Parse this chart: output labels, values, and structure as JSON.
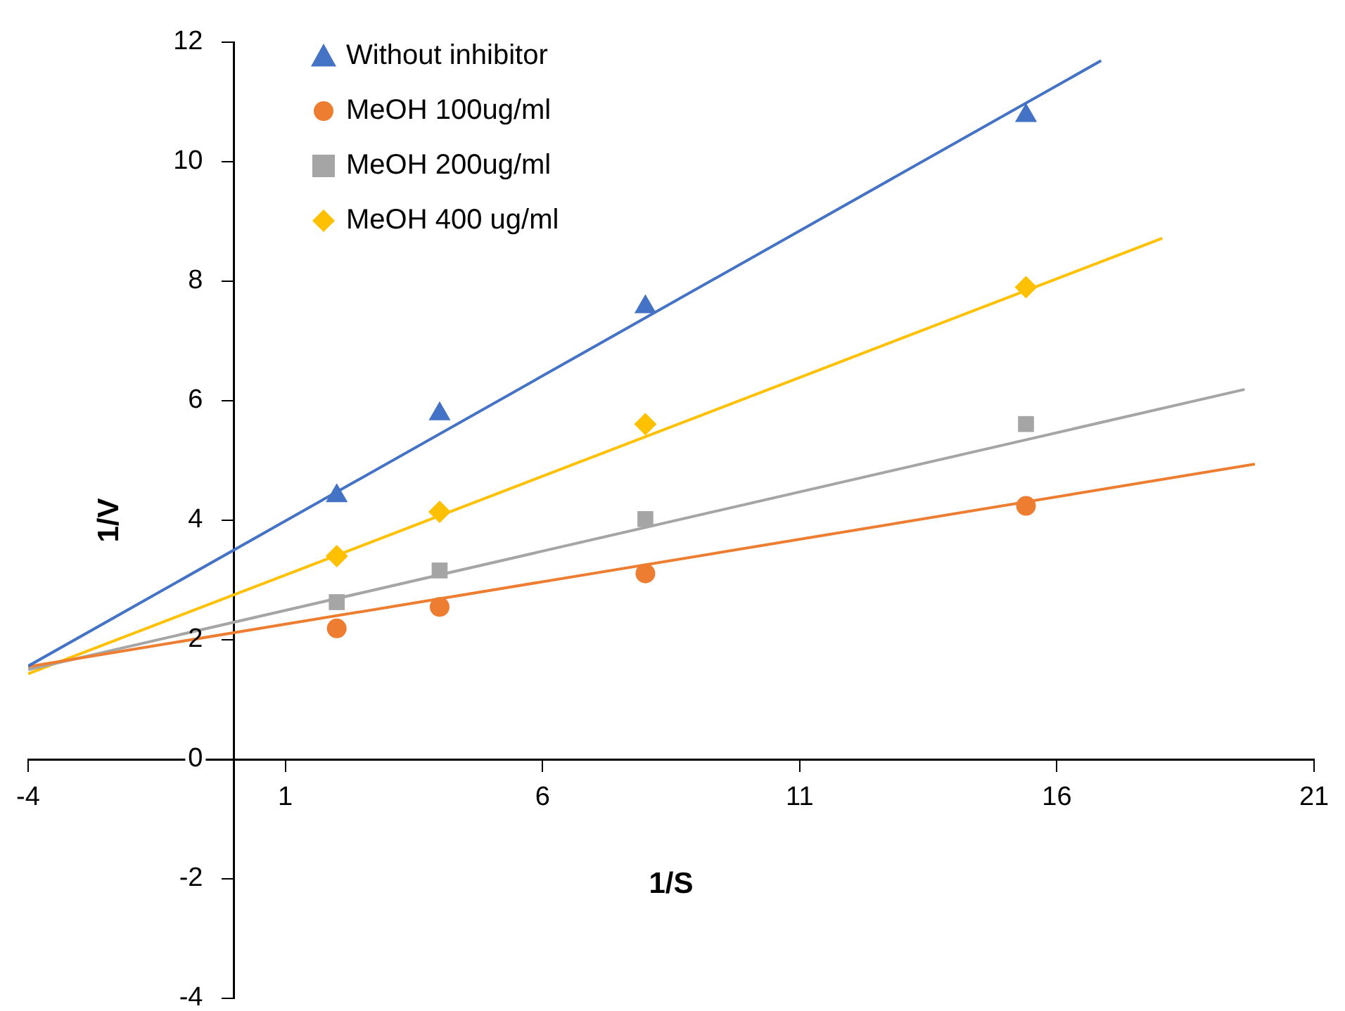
{
  "chart_data": {
    "type": "scatter",
    "xlabel": "1/S",
    "ylabel": "1/V",
    "xlim": [
      -4,
      21
    ],
    "xticks": [
      -4,
      1,
      6,
      11,
      16,
      21
    ],
    "ylim": [
      -4,
      12
    ],
    "yticks": [
      -4,
      -2,
      0,
      2,
      4,
      6,
      8,
      10,
      12
    ],
    "grid": false,
    "legend": "top left",
    "series": [
      {
        "name": "Without inhibitor",
        "color": "#4472c4",
        "marker": "triangle",
        "x": [
          2,
          4,
          8,
          15.4
        ],
        "values": [
          4.41,
          5.78,
          7.57,
          10.77
        ]
      },
      {
        "name": "MeOH 100ug/ml",
        "color": "#ed7d31",
        "marker": "circle",
        "x": [
          2,
          4,
          8,
          15.4
        ],
        "values": [
          2.19,
          2.55,
          3.11,
          4.24
        ]
      },
      {
        "name": "MeOH 200ug/ml",
        "color": "#a5a5a5",
        "marker": "square",
        "x": [
          2,
          4,
          8,
          15.4
        ],
        "values": [
          2.63,
          3.16,
          4.02,
          5.61
        ]
      },
      {
        "name": "MeOH 400 ug/ml",
        "color": "#ffc000",
        "marker": "diamond",
        "x": [
          2,
          4,
          8,
          15.4
        ],
        "values": [
          3.4,
          4.14,
          5.61,
          7.9
        ]
      },
      {
        "type": "line",
        "color": "#4472c4",
        "marker": "none",
        "x": [
          -4,
          16.86
        ],
        "values": [
          1.56,
          11.69
        ]
      },
      {
        "type": "line",
        "color": "#ed7d31",
        "marker": "none",
        "x": [
          -4,
          19.85
        ],
        "values": [
          1.55,
          4.94
        ]
      },
      {
        "type": "line",
        "color": "#a5a5a5",
        "marker": "none",
        "x": [
          -4,
          19.65
        ],
        "values": [
          1.5,
          6.19
        ]
      },
      {
        "type": "line",
        "color": "#ffc000",
        "marker": "none",
        "x": [
          -4,
          18.05
        ],
        "values": [
          1.43,
          8.72
        ]
      }
    ]
  }
}
